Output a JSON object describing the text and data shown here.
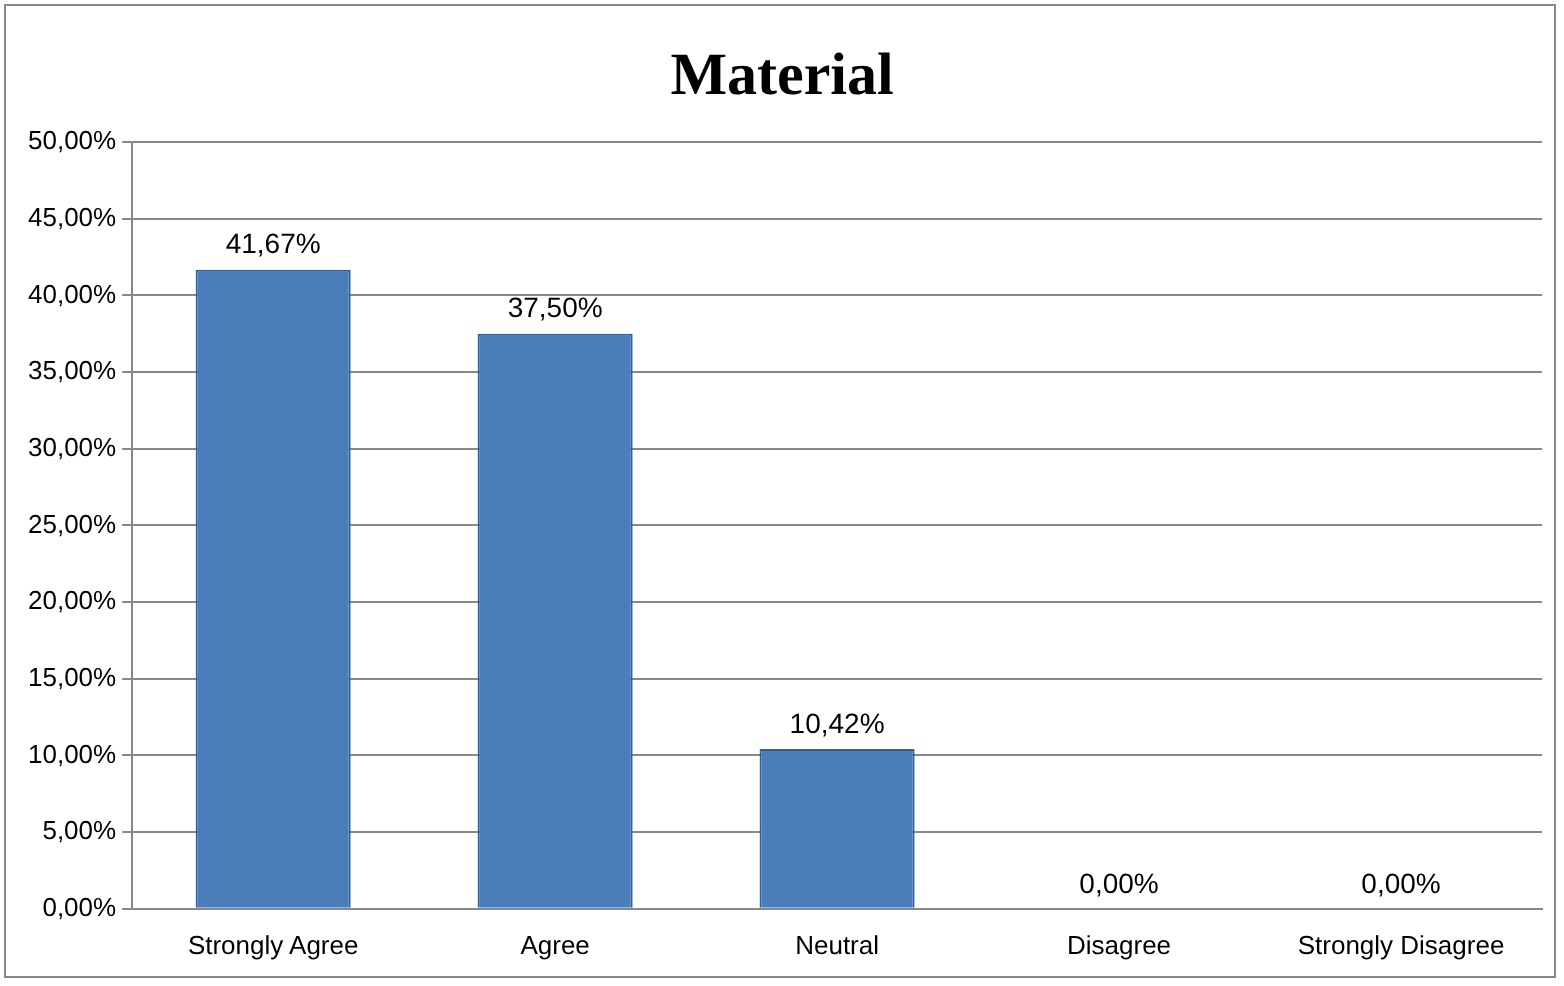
{
  "chart_data": {
    "type": "bar",
    "title": "Material",
    "categories": [
      "Strongly Agree",
      "Agree",
      "Neutral",
      "Disagree",
      "Strongly Disagree"
    ],
    "values": [
      41.67,
      37.5,
      10.42,
      0,
      0
    ],
    "value_labels": [
      "41,67%",
      "37,50%",
      "10,42%",
      "0,00%",
      "0,00%"
    ],
    "color": "#4a7ebb",
    "ylim": [
      0,
      50
    ],
    "yticks": [
      {
        "value": 0,
        "label": "0,00%"
      },
      {
        "value": 5,
        "label": "5,00%"
      },
      {
        "value": 10,
        "label": "10,00%"
      },
      {
        "value": 15,
        "label": "15,00%"
      },
      {
        "value": 20,
        "label": "20,00%"
      },
      {
        "value": 25,
        "label": "25,00%"
      },
      {
        "value": 30,
        "label": "30,00%"
      },
      {
        "value": 35,
        "label": "35,00%"
      },
      {
        "value": 40,
        "label": "40,00%"
      },
      {
        "value": 45,
        "label": "45,00%"
      },
      {
        "value": 50,
        "label": "50,00%"
      }
    ],
    "grid": "y"
  }
}
